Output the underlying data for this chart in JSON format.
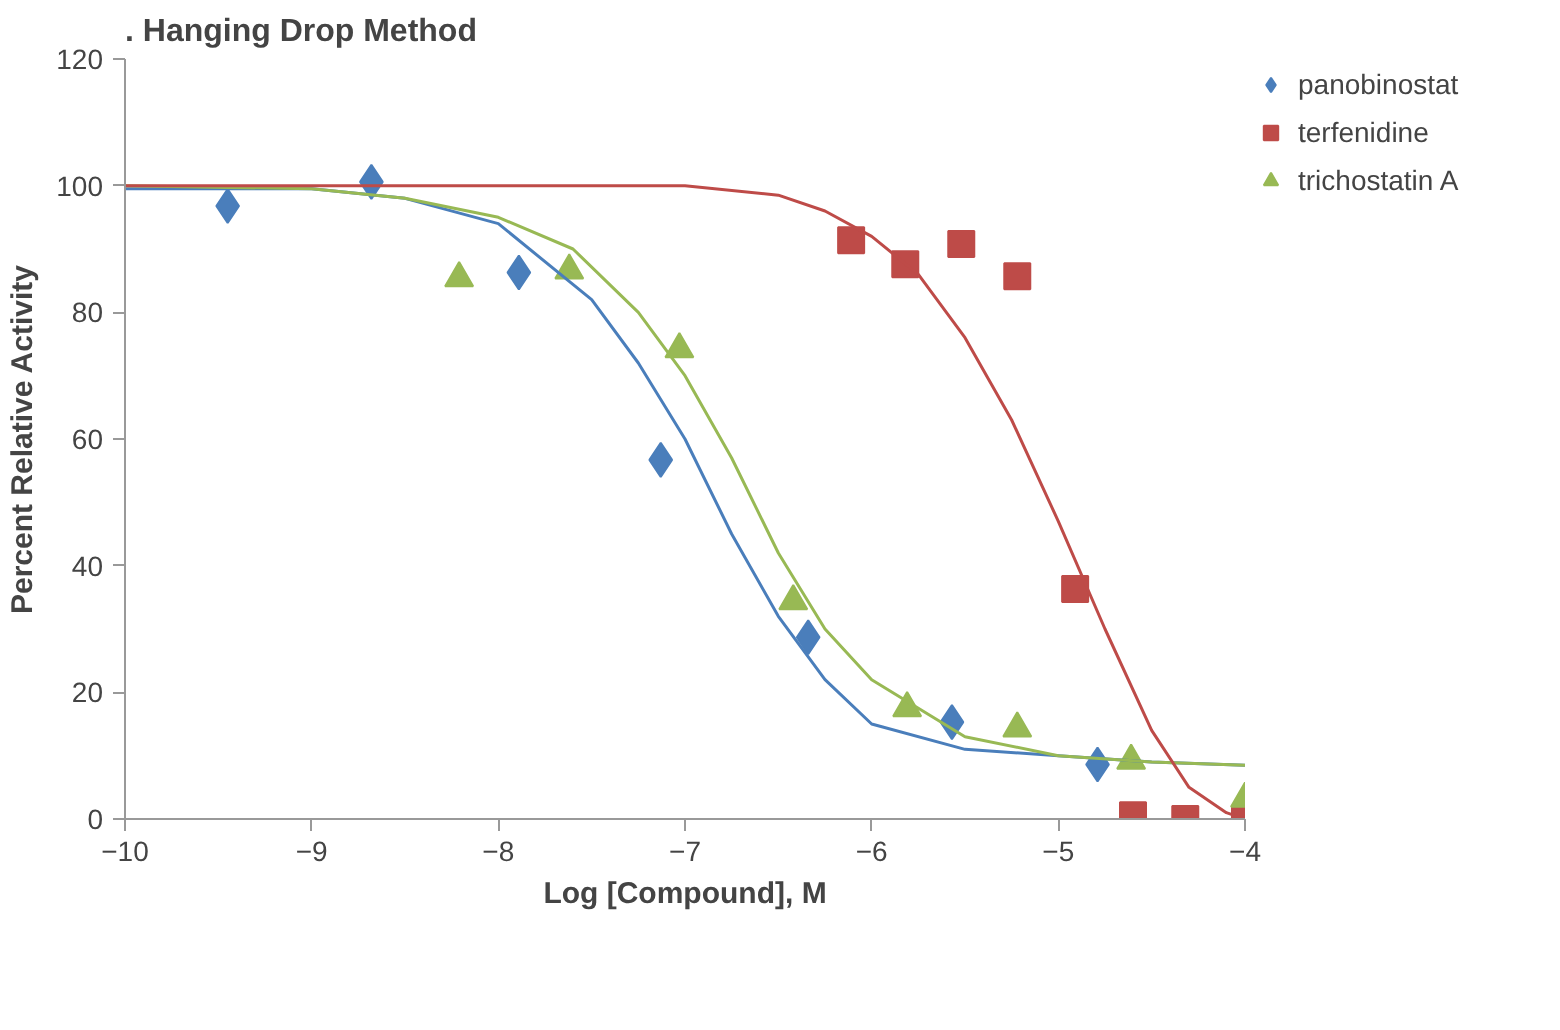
{
  "chart_data": {
    "type": "scatter",
    "title": ". Hanging Drop Method",
    "xlabel": "Log [Compound], M",
    "ylabel": "Percent Relative Activity",
    "xlim": [
      -10,
      -4
    ],
    "ylim": [
      0,
      120
    ],
    "xticks": [
      {
        "value": -10,
        "label": "−10"
      },
      {
        "value": -9,
        "label": "−9"
      },
      {
        "value": -8,
        "label": "−8"
      },
      {
        "value": -7,
        "label": "−7"
      },
      {
        "value": -6,
        "label": "−6"
      },
      {
        "value": -5,
        "label": "−5"
      },
      {
        "value": -4,
        "label": "−4"
      }
    ],
    "yticks": [
      0,
      20,
      40,
      60,
      80,
      100,
      120
    ],
    "grid": false,
    "legend": "right",
    "series": [
      {
        "name": "panobinostat",
        "color": "#4a7ebb",
        "marker": "diamond",
        "x": [
          -9.45,
          -8.68,
          -7.89,
          -7.13,
          -6.34,
          -5.57,
          -4.79
        ],
        "values": [
          96.8,
          100.6,
          86.3,
          56.7,
          28.7,
          15.3,
          8.6
        ]
      },
      {
        "name": "terfenidine",
        "color": "#be4b48",
        "marker": "square",
        "x": [
          -6.11,
          -5.82,
          -5.52,
          -5.22,
          -4.91,
          -4.6,
          -4.32,
          -4.0
        ],
        "values": [
          91.4,
          87.6,
          90.8,
          85.7,
          36.3,
          0.6,
          0,
          0
        ]
      },
      {
        "name": "trichostatin A",
        "color": "#98b954",
        "marker": "triangle",
        "x": [
          -8.21,
          -7.62,
          -7.03,
          -6.42,
          -5.81,
          -5.22,
          -4.61,
          -4.0
        ],
        "values": [
          85.4,
          86.6,
          74.2,
          34.4,
          17.5,
          14.3,
          9.2,
          3.2
        ]
      },
      {
        "type": "line",
        "color": "#4a7ebb",
        "x": [
          -10,
          -9,
          -8.5,
          -8,
          -7.5,
          -7.25,
          -7,
          -6.75,
          -6.5,
          -6.25,
          -6,
          -5.5,
          -5,
          -4.5,
          -4
        ],
        "values": [
          99.5,
          99.5,
          98,
          94,
          82,
          72,
          60,
          45,
          32,
          22,
          15,
          11,
          10,
          9,
          8.5
        ]
      },
      {
        "type": "line",
        "color": "#98b954",
        "x": [
          -10,
          -9,
          -8.5,
          -8,
          -7.6,
          -7.25,
          -7,
          -6.75,
          -6.5,
          -6.25,
          -6,
          -5.5,
          -5,
          -4.5,
          -4
        ],
        "values": [
          100,
          99.5,
          98,
          95,
          90,
          80,
          70,
          57,
          42,
          30,
          22,
          13,
          10,
          9,
          8.5
        ]
      },
      {
        "type": "line",
        "color": "#be4b48",
        "x": [
          -10,
          -7,
          -6.5,
          -6.25,
          -6,
          -5.75,
          -5.5,
          -5.25,
          -5,
          -4.75,
          -4.5,
          -4.3,
          -4.1,
          -4
        ],
        "values": [
          100,
          100,
          98.5,
          96,
          92,
          86,
          76,
          63,
          47,
          30,
          14,
          5,
          1,
          0
        ]
      }
    ]
  }
}
